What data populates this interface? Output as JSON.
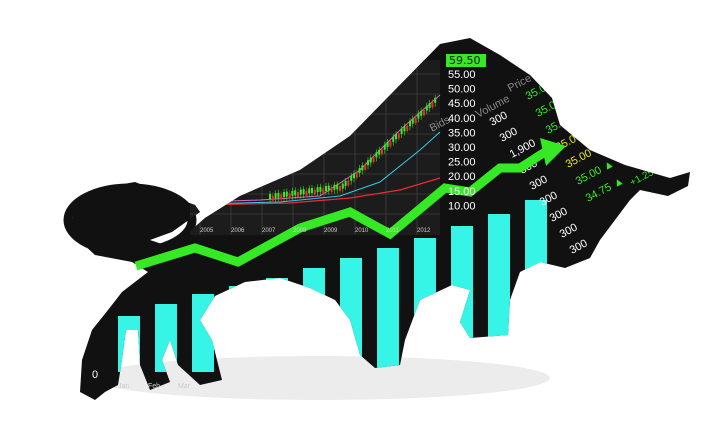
{
  "price_badge": "59.50",
  "price_axis": [
    "55.00",
    "50.00",
    "45.00",
    "40.00",
    "35.00",
    "30.00",
    "25.00",
    "20.00",
    "15.00",
    "10.00"
  ],
  "year_labels": [
    "2005",
    "2006",
    "2007",
    "2008",
    "2009",
    "2010",
    "2011",
    "2012"
  ],
  "month_labels": [
    "Jan",
    "Feb",
    "Mar"
  ],
  "axis_zero": "0",
  "quote_columns": {
    "price_header": "Price",
    "volume_header": "Volume",
    "bids_header": "Bids",
    "volumes": [
      "300",
      "300",
      "1,900",
      "300",
      "300",
      "300",
      "300",
      "300",
      "300"
    ],
    "prices": [
      "35.00",
      "35.00",
      "35.00",
      "35.00",
      "35.00",
      "35.00",
      "34.75"
    ],
    "change": "+1.25"
  },
  "bar_levels": [
    0.28,
    0.34,
    0.39,
    0.43,
    0.47,
    0.52,
    0.57,
    0.62,
    0.67,
    0.73,
    0.79,
    0.86
  ],
  "colors": {
    "bull": "#111111",
    "bars": "#36f5e6",
    "arrow": "#35ea25",
    "up_price": "#35ea25",
    "yellow_price": "#e6e61c",
    "shadow": "#e6e6e6"
  }
}
